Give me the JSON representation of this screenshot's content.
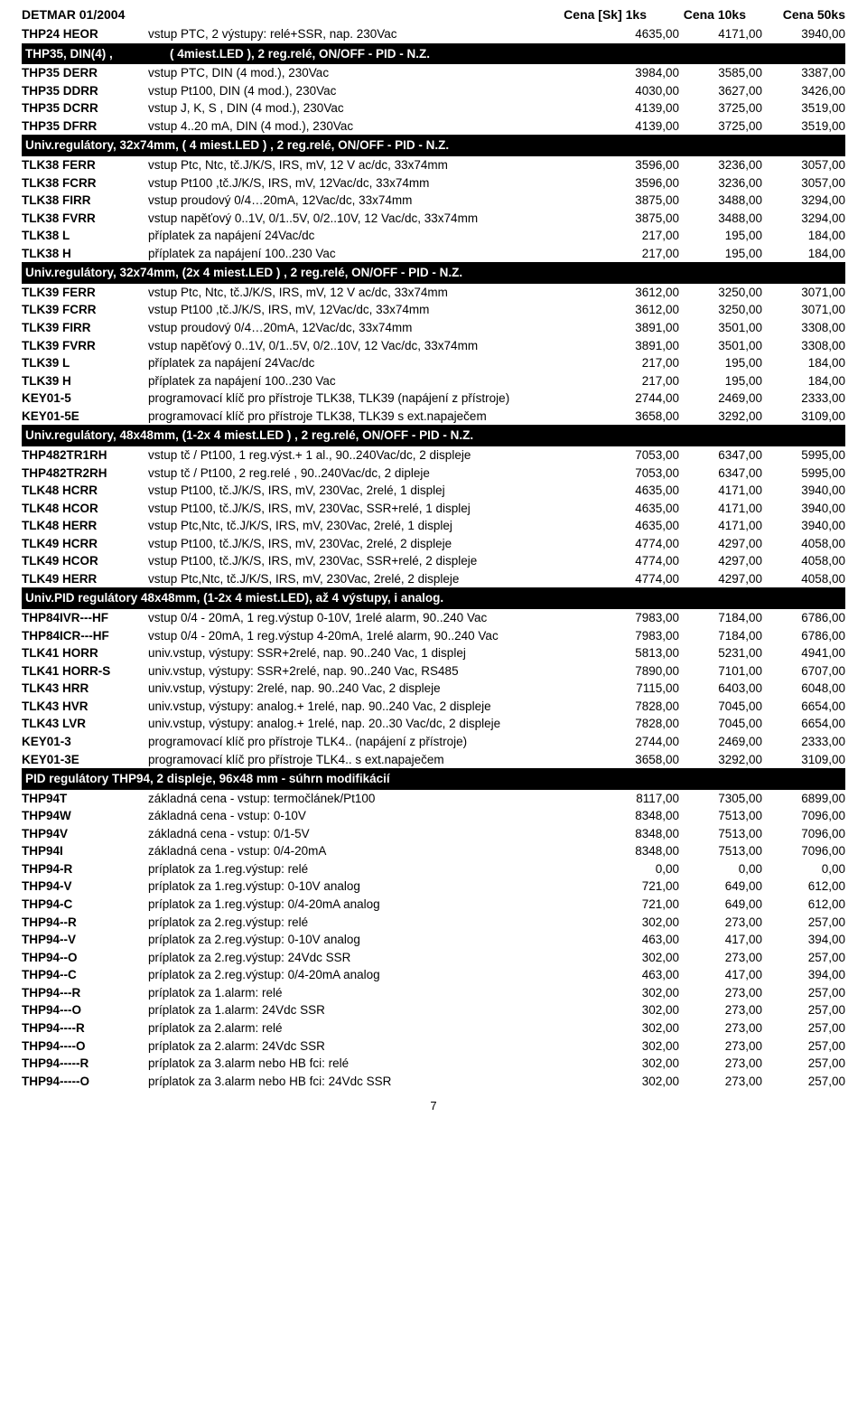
{
  "doc_header_left": "DETMAR  01/2004",
  "col_headers": [
    "Cena [Sk] 1ks",
    "Cena 10ks",
    "Cena 50ks"
  ],
  "page_number": "7",
  "rows": [
    {
      "type": "data",
      "code": "THP24 HEOR",
      "desc": "vstup PTC, 2 výstupy: relé+SSR, nap. 230Vac",
      "p": [
        "4635,00",
        "4171,00",
        "3940,00"
      ]
    },
    {
      "type": "section",
      "code": "THP35,    DIN(4) ,",
      "desc": "( 4miest.LED ),  2 reg.relé, ON/OFF - PID - N.Z."
    },
    {
      "type": "data",
      "code": "THP35 DERR",
      "desc": "vstup PTC, DIN (4 mod.), 230Vac",
      "p": [
        "3984,00",
        "3585,00",
        "3387,00"
      ]
    },
    {
      "type": "data",
      "code": "THP35 DDRR",
      "desc": "vstup Pt100, DIN (4 mod.), 230Vac",
      "p": [
        "4030,00",
        "3627,00",
        "3426,00"
      ]
    },
    {
      "type": "data",
      "code": "THP35 DCRR",
      "desc": "vstup J, K, S , DIN (4 mod.), 230Vac",
      "p": [
        "4139,00",
        "3725,00",
        "3519,00"
      ]
    },
    {
      "type": "data",
      "code": "THP35 DFRR",
      "desc": "vstup 4..20 mA, DIN (4 mod.), 230Vac",
      "p": [
        "4139,00",
        "3725,00",
        "3519,00"
      ]
    },
    {
      "type": "section",
      "code": "",
      "desc": "Univ.regulátory, 32x74mm, ( 4 miest.LED ) , 2 reg.relé, ON/OFF - PID - N.Z."
    },
    {
      "type": "data",
      "code": "TLK38 FERR",
      "desc": "vstup Ptc, Ntc, tč.J/K/S, IRS, mV, 12 V ac/dc, 33x74mm",
      "p": [
        "3596,00",
        "3236,00",
        "3057,00"
      ]
    },
    {
      "type": "data",
      "code": "TLK38 FCRR",
      "desc": "vstup Pt100 ,tč.J/K/S, IRS, mV, 12Vac/dc, 33x74mm",
      "p": [
        "3596,00",
        "3236,00",
        "3057,00"
      ]
    },
    {
      "type": "data",
      "code": "TLK38 FIRR",
      "desc": "vstup proudový 0/4…20mA, 12Vac/dc, 33x74mm",
      "p": [
        "3875,00",
        "3488,00",
        "3294,00"
      ]
    },
    {
      "type": "data",
      "code": "TLK38 FVRR",
      "desc": "vstup napěťový 0..1V, 0/1..5V, 0/2..10V, 12 Vac/dc, 33x74mm",
      "p": [
        "3875,00",
        "3488,00",
        "3294,00"
      ]
    },
    {
      "type": "data",
      "code": "TLK38 L",
      "desc": "příplatek za napájení 24Vac/dc",
      "p": [
        "217,00",
        "195,00",
        "184,00"
      ]
    },
    {
      "type": "data",
      "code": "TLK38 H",
      "desc": "příplatek za napájení 100..230 Vac",
      "p": [
        "217,00",
        "195,00",
        "184,00"
      ]
    },
    {
      "type": "section",
      "code": "",
      "desc": "Univ.regulátory, 32x74mm, (2x 4 miest.LED ) , 2 reg.relé, ON/OFF - PID - N.Z."
    },
    {
      "type": "data",
      "code": "TLK39 FERR",
      "desc": "vstup Ptc, Ntc, tč.J/K/S, IRS, mV, 12 V ac/dc, 33x74mm",
      "p": [
        "3612,00",
        "3250,00",
        "3071,00"
      ]
    },
    {
      "type": "data",
      "code": "TLK39 FCRR",
      "desc": "vstup Pt100 ,tč.J/K/S, IRS, mV, 12Vac/dc, 33x74mm",
      "p": [
        "3612,00",
        "3250,00",
        "3071,00"
      ]
    },
    {
      "type": "data",
      "code": "TLK39 FIRR",
      "desc": "vstup proudový 0/4…20mA, 12Vac/dc, 33x74mm",
      "p": [
        "3891,00",
        "3501,00",
        "3308,00"
      ]
    },
    {
      "type": "data",
      "code": "TLK39 FVRR",
      "desc": "vstup napěťový 0..1V, 0/1..5V, 0/2..10V, 12 Vac/dc, 33x74mm",
      "p": [
        "3891,00",
        "3501,00",
        "3308,00"
      ]
    },
    {
      "type": "data",
      "code": "TLK39 L",
      "desc": "příplatek za napájení 24Vac/dc",
      "p": [
        "217,00",
        "195,00",
        "184,00"
      ]
    },
    {
      "type": "data",
      "code": "TLK39 H",
      "desc": "příplatek za napájení 100..230 Vac",
      "p": [
        "217,00",
        "195,00",
        "184,00"
      ]
    },
    {
      "type": "data",
      "code": "KEY01-5",
      "desc": "programovací klíč pro přístroje TLK38, TLK39 (napájení z přístroje)",
      "p": [
        "2744,00",
        "2469,00",
        "2333,00"
      ]
    },
    {
      "type": "data",
      "code": "KEY01-5E",
      "desc": "programovací klíč pro přístroje TLK38, TLK39 s ext.napaječem",
      "p": [
        "3658,00",
        "3292,00",
        "3109,00"
      ]
    },
    {
      "type": "section",
      "code": "",
      "desc": "Univ.regulátory, 48x48mm, (1-2x 4 miest.LED ) , 2 reg.relé, ON/OFF - PID - N.Z."
    },
    {
      "type": "data",
      "code": "THP482TR1RH",
      "desc": "vstup tč / Pt100, 1 reg.výst.+ 1 al., 90..240Vac/dc, 2 displeje",
      "p": [
        "7053,00",
        "6347,00",
        "5995,00"
      ]
    },
    {
      "type": "data",
      "code": "THP482TR2RH",
      "desc": "vstup tč / Pt100, 2 reg.relé , 90..240Vac/dc, 2 dipleje",
      "p": [
        "7053,00",
        "6347,00",
        "5995,00"
      ]
    },
    {
      "type": "data",
      "code": "TLK48 HCRR",
      "desc": "vstup Pt100, tč.J/K/S, IRS, mV, 230Vac, 2relé, 1 displej",
      "p": [
        "4635,00",
        "4171,00",
        "3940,00"
      ]
    },
    {
      "type": "data",
      "code": "TLK48 HCOR",
      "desc": "vstup Pt100, tč.J/K/S, IRS, mV, 230Vac, SSR+relé, 1 displej",
      "p": [
        "4635,00",
        "4171,00",
        "3940,00"
      ]
    },
    {
      "type": "data",
      "code": "TLK48 HERR",
      "desc": "vstup Ptc,Ntc, tč.J/K/S, IRS, mV, 230Vac, 2relé, 1 displej",
      "p": [
        "4635,00",
        "4171,00",
        "3940,00"
      ]
    },
    {
      "type": "data",
      "code": "TLK49 HCRR",
      "desc": "vstup Pt100, tč.J/K/S, IRS, mV, 230Vac, 2relé, 2 displeje",
      "p": [
        "4774,00",
        "4297,00",
        "4058,00"
      ]
    },
    {
      "type": "data",
      "code": "TLK49 HCOR",
      "desc": "vstup Pt100, tč.J/K/S, IRS, mV, 230Vac, SSR+relé, 2 displeje",
      "p": [
        "4774,00",
        "4297,00",
        "4058,00"
      ]
    },
    {
      "type": "data",
      "code": "TLK49 HERR",
      "desc": "vstup Ptc,Ntc, tč.J/K/S, IRS, mV, 230Vac, 2relé, 2 displeje",
      "p": [
        "4774,00",
        "4297,00",
        "4058,00"
      ]
    },
    {
      "type": "section",
      "code": "",
      "desc": "Univ.PID regulátory 48x48mm, (1-2x 4 miest.LED), až 4 výstupy, i analog."
    },
    {
      "type": "data",
      "code": "THP84IVR---HF",
      "desc": "vstup 0/4 - 20mA, 1 reg.výstup 0-10V, 1relé alarm, 90..240 Vac",
      "p": [
        "7983,00",
        "7184,00",
        "6786,00"
      ]
    },
    {
      "type": "data",
      "code": "THP84ICR---HF",
      "desc": "vstup 0/4 - 20mA, 1 reg.výstup 4-20mA, 1relé alarm, 90..240 Vac",
      "p": [
        "7983,00",
        "7184,00",
        "6786,00"
      ]
    },
    {
      "type": "data",
      "code": "TLK41 HORR",
      "desc": "univ.vstup, výstupy: SSR+2relé, nap. 90..240 Vac, 1 displej",
      "p": [
        "5813,00",
        "5231,00",
        "4941,00"
      ]
    },
    {
      "type": "data",
      "code": "TLK41 HORR-S",
      "desc": "univ.vstup, výstupy: SSR+2relé, nap. 90..240 Vac, RS485",
      "p": [
        "7890,00",
        "7101,00",
        "6707,00"
      ]
    },
    {
      "type": "data",
      "code": "TLK43 HRR",
      "desc": "univ.vstup, výstupy: 2relé, nap. 90..240 Vac, 2 displeje",
      "p": [
        "7115,00",
        "6403,00",
        "6048,00"
      ]
    },
    {
      "type": "data",
      "code": "TLK43 HVR",
      "desc": "univ.vstup, výstupy: analog.+ 1relé, nap. 90..240 Vac, 2 displeje",
      "p": [
        "7828,00",
        "7045,00",
        "6654,00"
      ]
    },
    {
      "type": "data",
      "code": "TLK43 LVR",
      "desc": "univ.vstup, výstupy: analog.+ 1relé, nap. 20..30 Vac/dc, 2 displeje",
      "p": [
        "7828,00",
        "7045,00",
        "6654,00"
      ]
    },
    {
      "type": "data",
      "code": "KEY01-3",
      "desc": "programovací klíč pro přístroje TLK4.. (napájení z přístroje)",
      "p": [
        "2744,00",
        "2469,00",
        "2333,00"
      ]
    },
    {
      "type": "data",
      "code": "KEY01-3E",
      "desc": "programovací klíč pro přístroje TLK4..  s ext.napaječem",
      "p": [
        "3658,00",
        "3292,00",
        "3109,00"
      ]
    },
    {
      "type": "section",
      "code": "",
      "desc": "PID regulátory THP94, 2 displeje, 96x48 mm - súhrn modifikácií"
    },
    {
      "type": "data",
      "code": "THP94T",
      "desc": "základná cena - vstup: termočlánek/Pt100",
      "p": [
        "8117,00",
        "7305,00",
        "6899,00"
      ]
    },
    {
      "type": "data",
      "code": "THP94W",
      "desc": "základná cena - vstup: 0-10V",
      "p": [
        "8348,00",
        "7513,00",
        "7096,00"
      ]
    },
    {
      "type": "data",
      "code": "THP94V",
      "desc": "základná cena - vstup: 0/1-5V",
      "p": [
        "8348,00",
        "7513,00",
        "7096,00"
      ]
    },
    {
      "type": "data",
      "code": "THP94I",
      "desc": "základná cena - vstup: 0/4-20mA",
      "p": [
        "8348,00",
        "7513,00",
        "7096,00"
      ]
    },
    {
      "type": "data",
      "code": "THP94-R",
      "desc": "príplatok za 1.reg.výstup: relé",
      "p": [
        "0,00",
        "0,00",
        "0,00"
      ]
    },
    {
      "type": "data",
      "code": "THP94-V",
      "desc": "príplatok za 1.reg.výstup: 0-10V analog",
      "p": [
        "721,00",
        "649,00",
        "612,00"
      ]
    },
    {
      "type": "data",
      "code": "THP94-C",
      "desc": "príplatok za 1.reg.výstup: 0/4-20mA analog",
      "p": [
        "721,00",
        "649,00",
        "612,00"
      ]
    },
    {
      "type": "data",
      "code": "THP94--R",
      "desc": "príplatok za 2.reg.výstup: relé",
      "p": [
        "302,00",
        "273,00",
        "257,00"
      ]
    },
    {
      "type": "data",
      "code": "THP94--V",
      "desc": "príplatok za 2.reg.výstup: 0-10V analog",
      "p": [
        "463,00",
        "417,00",
        "394,00"
      ]
    },
    {
      "type": "data",
      "code": "THP94--O",
      "desc": "príplatok za 2.reg.výstup: 24Vdc SSR",
      "p": [
        "302,00",
        "273,00",
        "257,00"
      ]
    },
    {
      "type": "data",
      "code": "THP94--C",
      "desc": "príplatok za 2.reg.výstup: 0/4-20mA analog",
      "p": [
        "463,00",
        "417,00",
        "394,00"
      ]
    },
    {
      "type": "data",
      "code": "THP94---R",
      "desc": "príplatok za 1.alarm: relé",
      "p": [
        "302,00",
        "273,00",
        "257,00"
      ]
    },
    {
      "type": "data",
      "code": "THP94---O",
      "desc": "príplatok za 1.alarm: 24Vdc SSR",
      "p": [
        "302,00",
        "273,00",
        "257,00"
      ]
    },
    {
      "type": "data",
      "code": "THP94----R",
      "desc": "príplatok za 2.alarm: relé",
      "p": [
        "302,00",
        "273,00",
        "257,00"
      ]
    },
    {
      "type": "data",
      "code": "THP94----O",
      "desc": "príplatok za 2.alarm: 24Vdc SSR",
      "p": [
        "302,00",
        "273,00",
        "257,00"
      ]
    },
    {
      "type": "data",
      "code": "THP94-----R",
      "desc": "príplatok za 3.alarm nebo HB fci: relé",
      "p": [
        "302,00",
        "273,00",
        "257,00"
      ]
    },
    {
      "type": "data",
      "code": "THP94-----O",
      "desc": "príplatok za 3.alarm nebo HB fci: 24Vdc SSR",
      "p": [
        "302,00",
        "273,00",
        "257,00"
      ]
    }
  ]
}
